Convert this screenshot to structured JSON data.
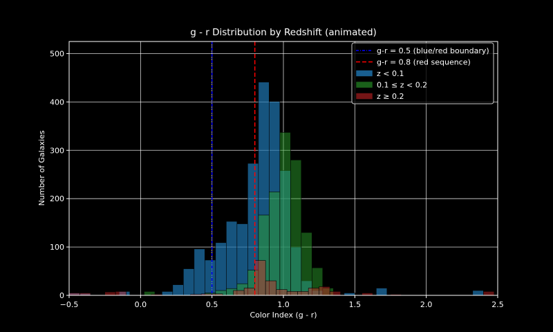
{
  "chart_data": {
    "type": "bar",
    "title": "g - r Distribution by Redshift (animated)",
    "xlabel": "Color Index (g - r)",
    "ylabel": "Number of Galaxies",
    "xlim": [
      -0.5,
      2.5
    ],
    "ylim": [
      0,
      525
    ],
    "xticks": [
      -0.5,
      0.0,
      0.5,
      1.0,
      1.5,
      2.0,
      2.5
    ],
    "xtick_labels": [
      "−0.5",
      "0.0",
      "0.5",
      "1.0",
      "1.5",
      "2.0",
      "2.5"
    ],
    "yticks": [
      0,
      100,
      200,
      300,
      400,
      500
    ],
    "ytick_labels": [
      "0",
      "100",
      "200",
      "300",
      "400",
      "500"
    ],
    "grid": true,
    "legend_position": "top-right",
    "series": [
      {
        "name": "z < 0.1",
        "color": "#1f77b4",
        "bins": [
          [
            -0.5,
            -0.425,
            5
          ],
          [
            -0.425,
            -0.35,
            4
          ],
          [
            -0.15,
            -0.075,
            8
          ],
          [
            0.15,
            0.225,
            8
          ],
          [
            0.225,
            0.3,
            22
          ],
          [
            0.3,
            0.375,
            55
          ],
          [
            0.375,
            0.45,
            96
          ],
          [
            0.45,
            0.525,
            73
          ],
          [
            0.525,
            0.6,
            109
          ],
          [
            0.6,
            0.675,
            153
          ],
          [
            0.675,
            0.75,
            148
          ],
          [
            0.75,
            0.825,
            273
          ],
          [
            0.825,
            0.9,
            441
          ],
          [
            0.9,
            0.975,
            401
          ],
          [
            0.975,
            1.05,
            258
          ],
          [
            1.05,
            1.125,
            100
          ],
          [
            1.125,
            1.2,
            30
          ],
          [
            1.2,
            1.275,
            10
          ],
          [
            1.425,
            1.5,
            5
          ],
          [
            1.65,
            1.725,
            15
          ],
          [
            2.325,
            2.4,
            10
          ]
        ]
      },
      {
        "name": "0.1 ≤ z < 0.2",
        "color": "#2ca02c",
        "bins": [
          [
            0.025,
            0.1,
            8
          ],
          [
            0.45,
            0.525,
            5
          ],
          [
            0.525,
            0.6,
            10
          ],
          [
            0.6,
            0.675,
            14
          ],
          [
            0.675,
            0.75,
            24
          ],
          [
            0.75,
            0.825,
            52
          ],
          [
            0.825,
            0.9,
            166
          ],
          [
            0.9,
            0.975,
            214
          ],
          [
            0.975,
            1.05,
            337
          ],
          [
            1.05,
            1.125,
            280
          ],
          [
            1.125,
            1.2,
            130
          ],
          [
            1.2,
            1.275,
            57
          ],
          [
            1.275,
            1.35,
            15
          ]
        ]
      },
      {
        "name": "z ≥ 0.2",
        "color": "#d62728",
        "bins": [
          [
            -0.5,
            -0.425,
            5
          ],
          [
            -0.425,
            -0.35,
            5
          ],
          [
            -0.25,
            -0.175,
            7
          ],
          [
            -0.175,
            -0.1,
            8
          ],
          [
            0.075,
            0.15,
            2
          ],
          [
            0.35,
            0.425,
            2
          ],
          [
            0.425,
            0.5,
            3
          ],
          [
            0.5,
            0.575,
            3
          ],
          [
            0.65,
            0.725,
            10
          ],
          [
            0.725,
            0.8,
            15
          ],
          [
            0.8,
            0.875,
            72
          ],
          [
            0.875,
            0.95,
            30
          ],
          [
            0.95,
            1.025,
            12
          ],
          [
            1.025,
            1.1,
            8
          ],
          [
            1.1,
            1.175,
            8
          ],
          [
            1.175,
            1.25,
            15
          ],
          [
            1.25,
            1.325,
            18
          ],
          [
            1.325,
            1.4,
            8
          ],
          [
            1.55,
            1.625,
            5
          ],
          [
            1.75,
            1.825,
            2
          ],
          [
            2.4,
            2.475,
            8
          ]
        ]
      }
    ],
    "reference_lines": [
      {
        "name": "g-r = 0.5 (blue/red boundary)",
        "x": 0.5,
        "color": "#0000ff",
        "style": "dash-dot"
      },
      {
        "name": "g-r = 0.8 (red sequence)",
        "x": 0.8,
        "color": "#ff0000",
        "style": "dashed"
      }
    ]
  }
}
